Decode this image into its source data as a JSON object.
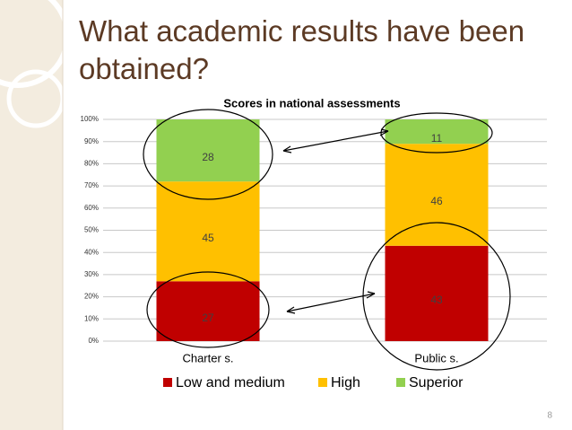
{
  "slide": {
    "title": "What academic results have been obtained?",
    "page_number": 8
  },
  "chart_data": {
    "type": "stacked_bar",
    "title": "Scores in national assessments",
    "categories": [
      "Charter s.",
      "Public s."
    ],
    "series": [
      {
        "name": "Low and medium",
        "color": "#c00000",
        "values": [
          27,
          43
        ]
      },
      {
        "name": "High",
        "color": "#ffc000",
        "values": [
          45,
          46
        ]
      },
      {
        "name": "Superior",
        "color": "#92d050",
        "values": [
          28,
          11
        ]
      }
    ],
    "ylim": [
      0,
      100
    ],
    "yticks": [
      {
        "value": 0,
        "label": "0%"
      },
      {
        "value": 10,
        "label": "10%"
      },
      {
        "value": 20,
        "label": "20%"
      },
      {
        "value": 30,
        "label": "30%"
      },
      {
        "value": 40,
        "label": "40%"
      },
      {
        "value": 50,
        "label": "50%"
      },
      {
        "value": 60,
        "label": "60%"
      },
      {
        "value": 70,
        "label": "70%"
      },
      {
        "value": 80,
        "label": "80%"
      },
      {
        "value": 90,
        "label": "90%"
      },
      {
        "value": 100,
        "label": "100%"
      }
    ],
    "grid": true,
    "legend": "bottom"
  }
}
